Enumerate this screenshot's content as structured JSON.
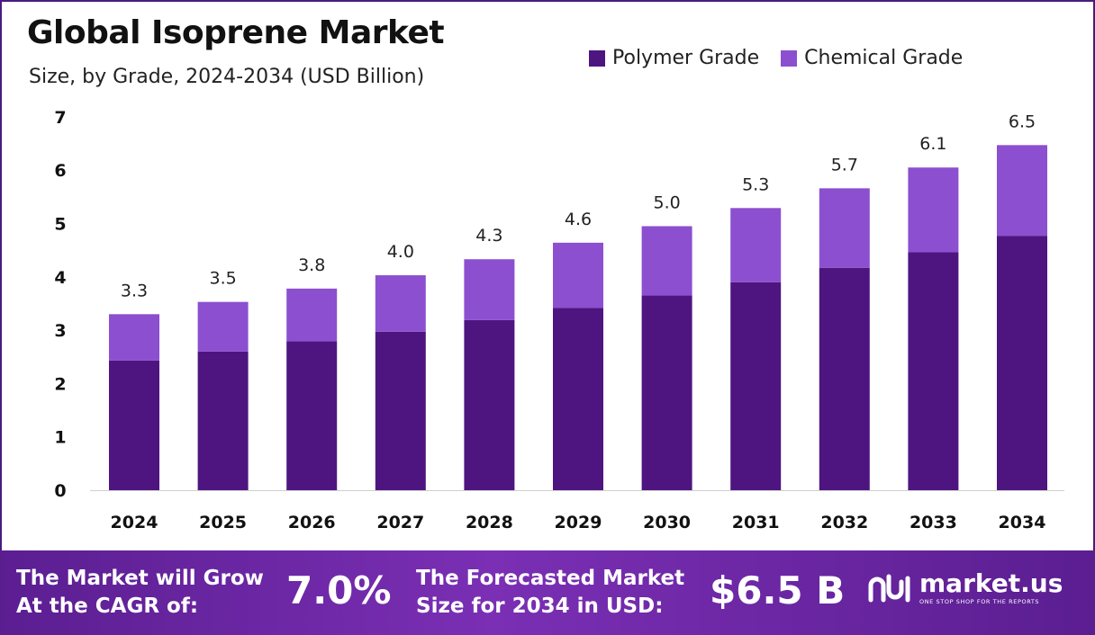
{
  "header": {
    "title": "Global Isoprene Market",
    "subtitle": "Size, by Grade, 2024-2034 (USD Billion)"
  },
  "legend": [
    {
      "label": "Polymer Grade",
      "color": "#4e1580"
    },
    {
      "label": "Chemical Grade",
      "color": "#8c4fd0"
    }
  ],
  "chart_data": {
    "type": "bar",
    "stacked": true,
    "categories": [
      "2024",
      "2025",
      "2026",
      "2027",
      "2028",
      "2029",
      "2030",
      "2031",
      "2032",
      "2033",
      "2034"
    ],
    "series": [
      {
        "name": "Polymer Grade",
        "color": "#4e1580",
        "values": [
          2.43,
          2.6,
          2.79,
          2.97,
          3.19,
          3.42,
          3.65,
          3.9,
          4.17,
          4.46,
          4.77
        ]
      },
      {
        "name": "Chemical Grade",
        "color": "#8c4fd0",
        "values": [
          0.87,
          0.93,
          0.99,
          1.06,
          1.14,
          1.22,
          1.3,
          1.39,
          1.49,
          1.59,
          1.7
        ]
      }
    ],
    "totals": [
      "3.3",
      "3.5",
      "3.8",
      "4.0",
      "4.3",
      "4.6",
      "5.0",
      "5.3",
      "5.7",
      "6.1",
      "6.5"
    ],
    "yticks": [
      "0",
      "1",
      "2",
      "3",
      "4",
      "5",
      "6",
      "7"
    ],
    "ylim": [
      0,
      7
    ],
    "grid": false,
    "legend_position": "top-right"
  },
  "footer": {
    "cagr_label_line1": "The Market will Grow",
    "cagr_label_line2": "At the CAGR of:",
    "cagr_value": "7.0%",
    "forecast_label_line1": "The Forecasted Market",
    "forecast_label_line2": "Size for 2034 in USD:",
    "forecast_value": "$6.5 B",
    "brand_name": "market.us",
    "brand_tagline": "ONE STOP SHOP FOR THE REPORTS"
  }
}
